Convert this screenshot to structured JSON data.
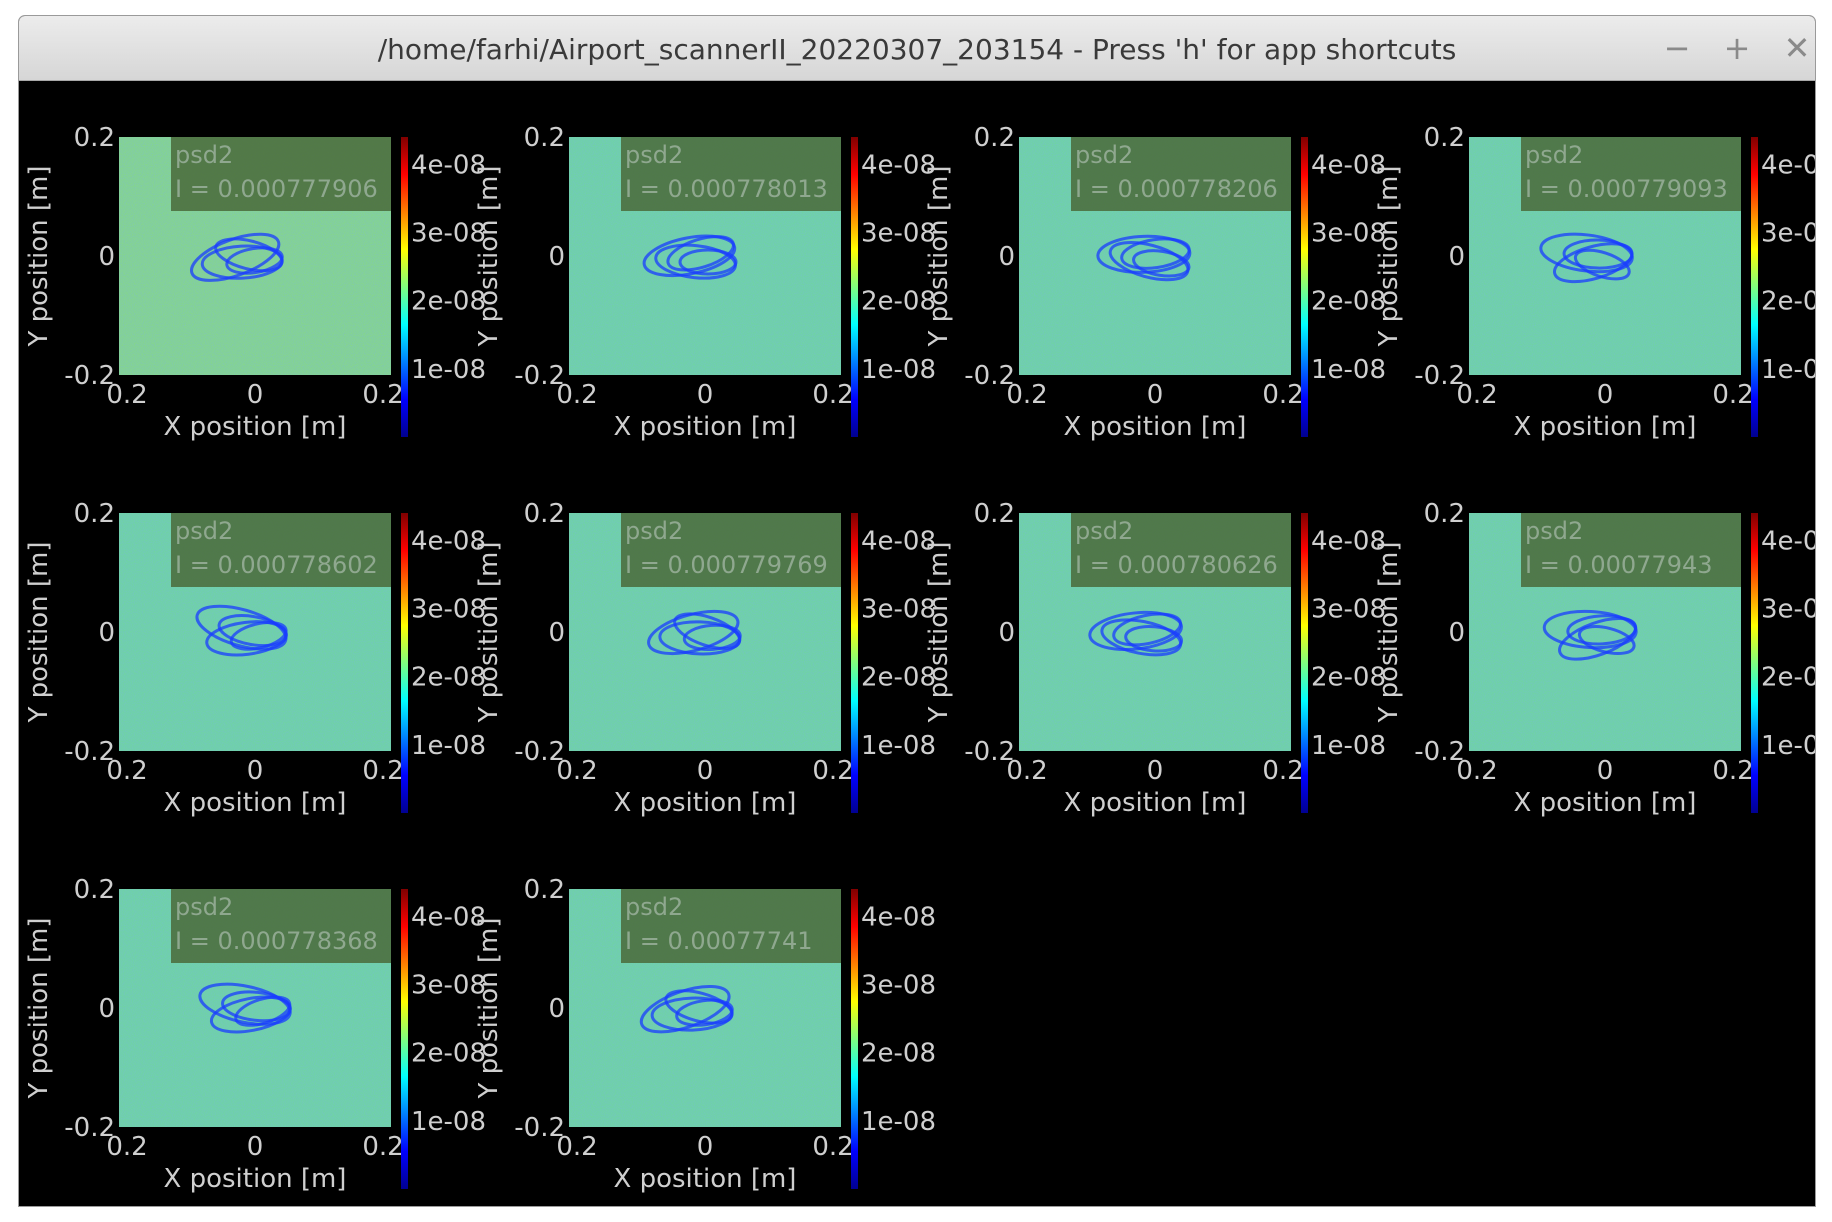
{
  "window": {
    "title": "/home/farhi/Airport_scannerII_20220307_203154 - Press 'h' for app shortcuts",
    "buttons": {
      "minimize": "−",
      "maximize": "+",
      "close": "✕"
    }
  },
  "colors": {
    "background": "#000000",
    "axis_text": "#cfcfcf",
    "legend_bg": "#4a6a3a"
  },
  "colorbar": {
    "colormap": "jet",
    "ticks": [
      "4e-08",
      "3e-08",
      "2e-08",
      "1e-08"
    ],
    "tick_values": [
      4e-08,
      3e-08,
      2e-08,
      1e-08
    ],
    "range": [
      0,
      4.4e-08
    ]
  },
  "chart_data": [
    {
      "type": "heatmap",
      "title": "",
      "xlabel": "X position [m]",
      "ylabel": "Y position [m]",
      "xlim": [
        -0.2,
        0.2
      ],
      "ylim": [
        -0.2,
        0.2
      ],
      "x_ticks": [
        "0.2",
        "0",
        "0.2"
      ],
      "y_ticks": [
        "0.2",
        "0",
        "-0.2"
      ],
      "legend": {
        "series": "psd2",
        "intensity": "I = 0.000777906"
      }
    },
    {
      "type": "heatmap",
      "title": "",
      "xlabel": "X position [m]",
      "ylabel": "Y position [m]",
      "xlim": [
        -0.2,
        0.2
      ],
      "ylim": [
        -0.2,
        0.2
      ],
      "x_ticks": [
        "0.2",
        "0",
        "0.2"
      ],
      "y_ticks": [
        "0.2",
        "0",
        "-0.2"
      ],
      "legend": {
        "series": "psd2",
        "intensity": "I = 0.000778013"
      }
    },
    {
      "type": "heatmap",
      "title": "",
      "xlabel": "X position [m]",
      "ylabel": "Y position [m]",
      "xlim": [
        -0.2,
        0.2
      ],
      "ylim": [
        -0.2,
        0.2
      ],
      "x_ticks": [
        "0.2",
        "0",
        "0.2"
      ],
      "y_ticks": [
        "0.2",
        "0",
        "-0.2"
      ],
      "legend": {
        "series": "psd2",
        "intensity": "I = 0.000778206"
      }
    },
    {
      "type": "heatmap",
      "title": "",
      "xlabel": "X position [m]",
      "ylabel": "Y position [m]",
      "xlim": [
        -0.2,
        0.2
      ],
      "ylim": [
        -0.2,
        0.2
      ],
      "x_ticks": [
        "0.2",
        "0",
        "0.2"
      ],
      "y_ticks": [
        "0.2",
        "0",
        "-0.2"
      ],
      "legend": {
        "series": "psd2",
        "intensity": "I = 0.000779093"
      }
    },
    {
      "type": "heatmap",
      "title": "",
      "xlabel": "X position [m]",
      "ylabel": "Y position [m]",
      "xlim": [
        -0.2,
        0.2
      ],
      "ylim": [
        -0.2,
        0.2
      ],
      "x_ticks": [
        "0.2",
        "0",
        "0.2"
      ],
      "y_ticks": [
        "0.2",
        "0",
        "-0.2"
      ],
      "legend": {
        "series": "psd2",
        "intensity": "I = 0.000778602"
      }
    },
    {
      "type": "heatmap",
      "title": "",
      "xlabel": "X position [m]",
      "ylabel": "Y position [m]",
      "xlim": [
        -0.2,
        0.2
      ],
      "ylim": [
        -0.2,
        0.2
      ],
      "x_ticks": [
        "0.2",
        "0",
        "0.2"
      ],
      "y_ticks": [
        "0.2",
        "0",
        "-0.2"
      ],
      "legend": {
        "series": "psd2",
        "intensity": "I = 0.000779769"
      }
    },
    {
      "type": "heatmap",
      "title": "",
      "xlabel": "X position [m]",
      "ylabel": "Y position [m]",
      "xlim": [
        -0.2,
        0.2
      ],
      "ylim": [
        -0.2,
        0.2
      ],
      "x_ticks": [
        "0.2",
        "0",
        "0.2"
      ],
      "y_ticks": [
        "0.2",
        "0",
        "-0.2"
      ],
      "legend": {
        "series": "psd2",
        "intensity": "I = 0.000780626"
      }
    },
    {
      "type": "heatmap",
      "title": "",
      "xlabel": "X position [m]",
      "ylabel": "Y position [m]",
      "xlim": [
        -0.2,
        0.2
      ],
      "ylim": [
        -0.2,
        0.2
      ],
      "x_ticks": [
        "0.2",
        "0",
        "0.2"
      ],
      "y_ticks": [
        "0.2",
        "0",
        "-0.2"
      ],
      "legend": {
        "series": "psd2",
        "intensity": "I = 0.00077943"
      }
    },
    {
      "type": "heatmap",
      "title": "",
      "xlabel": "X position [m]",
      "ylabel": "Y position [m]",
      "xlim": [
        -0.2,
        0.2
      ],
      "ylim": [
        -0.2,
        0.2
      ],
      "x_ticks": [
        "0.2",
        "0",
        "0.2"
      ],
      "y_ticks": [
        "0.2",
        "0",
        "-0.2"
      ],
      "legend": {
        "series": "psd2",
        "intensity": "I = 0.000778368"
      }
    },
    {
      "type": "heatmap",
      "title": "",
      "xlabel": "X position [m]",
      "ylabel": "Y position [m]",
      "xlim": [
        -0.2,
        0.2
      ],
      "ylim": [
        -0.2,
        0.2
      ],
      "x_ticks": [
        "0.2",
        "0",
        "0.2"
      ],
      "y_ticks": [
        "0.2",
        "0",
        "-0.2"
      ],
      "legend": {
        "series": "psd2",
        "intensity": "I = 0.00077741"
      }
    }
  ]
}
